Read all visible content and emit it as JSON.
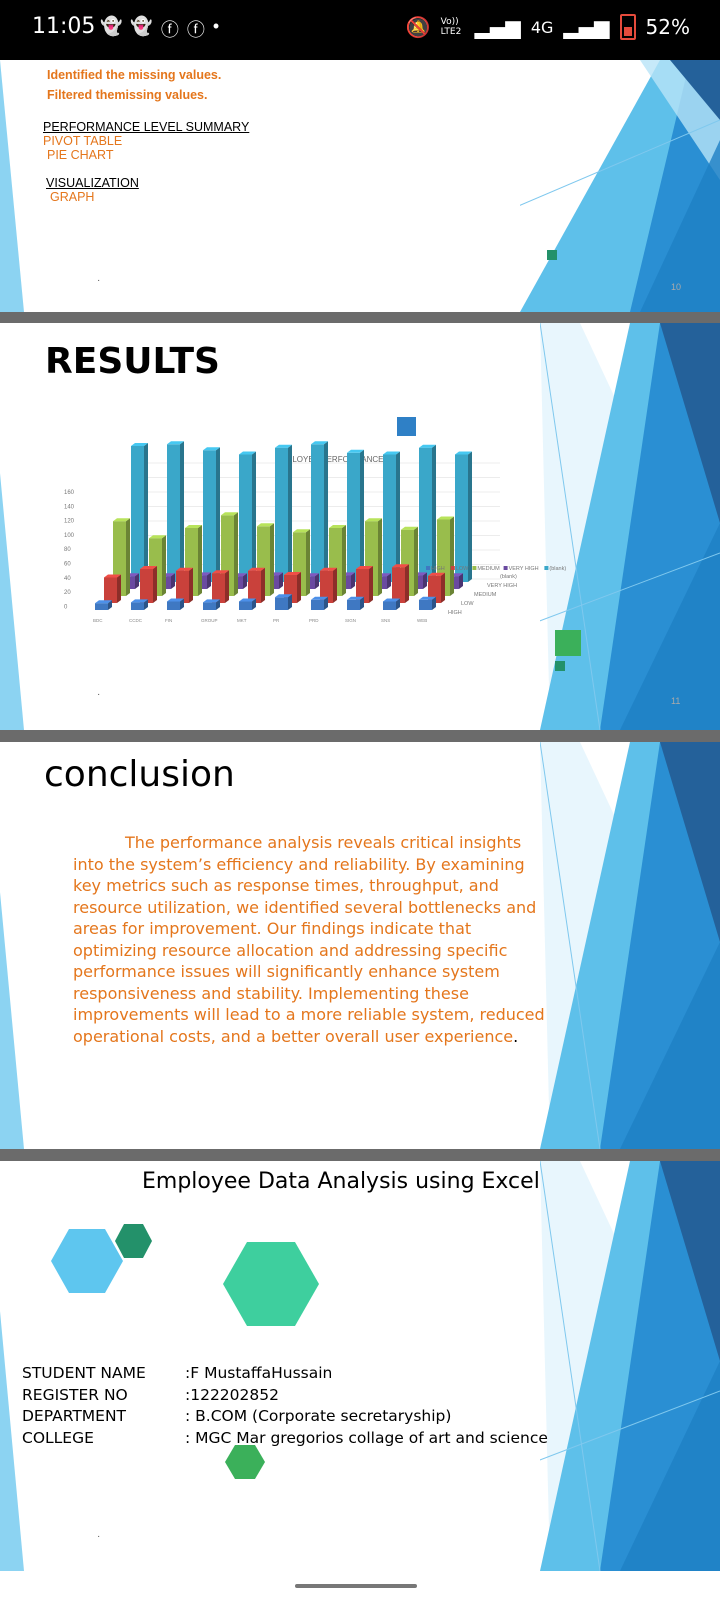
{
  "status": {
    "time": "11:05",
    "network": "4G",
    "battery": "52%",
    "volte": "Vo)) LTE2"
  },
  "slide1": {
    "line1": "Identified the missing values.",
    "line2": "Filtered themissing values.",
    "heading1": "PERFORMANCE LEVEL SUMMARY",
    "item1": "PIVOT TABLE",
    "item2": "PIE CHART",
    "heading2": "VISUALIZATION",
    "item3": "GRAPH",
    "page": "10"
  },
  "slide2": {
    "title": "RESULTS",
    "page": "11"
  },
  "chart_data": {
    "type": "bar",
    "title": "EMPLOYEE PERFORMANCE",
    "categories": [
      "BDC",
      "CCDC",
      "FIN",
      "GROUP",
      "MKT",
      "PR",
      "PRD",
      "SIGN",
      "SNS",
      "WEB"
    ],
    "series": [
      {
        "name": "HIGH",
        "values": [
          8,
          9,
          10,
          9,
          10,
          15,
          12,
          12,
          10,
          12
        ],
        "color": "#3f78c2"
      },
      {
        "name": "LOW",
        "values": [
          30,
          40,
          38,
          35,
          38,
          33,
          38,
          40,
          42,
          32
        ],
        "color": "#c9413b"
      },
      {
        "name": "MEDIUM",
        "values": [
          88,
          68,
          80,
          95,
          82,
          75,
          80,
          88,
          78,
          90
        ],
        "color": "#99bd4c"
      },
      {
        "name": "VERY HIGH",
        "values": [
          15,
          15,
          16,
          15,
          16,
          15,
          16,
          15,
          16,
          15
        ],
        "color": "#6a4aa0"
      },
      {
        "name": "(blank)",
        "values": [
          160,
          162,
          155,
          150,
          158,
          162,
          152,
          150,
          158,
          150
        ],
        "color": "#3aa7c9"
      }
    ],
    "yticks": [
      "160",
      "140",
      "120",
      "100",
      "80",
      "60",
      "40",
      "20",
      "0"
    ],
    "depth_labels": [
      "(blank)",
      "VERY HIGH",
      "MEDIUM",
      "LOW",
      "HIGH"
    ],
    "ylim": [
      0,
      160
    ],
    "legend": "right"
  },
  "slide3": {
    "title": "conclusion",
    "body": "The performance analysis reveals critical insights into the system’s efficiency and reliability. By examining key metrics such as response times, throughput, and resource utilization, we identified several bottlenecks and areas for improvement. Our findings indicate that optimizing resource allocation and addressing specific performance issues will significantly enhance system responsiveness and stability. Implementing these improvements will lead to a more reliable system, reduced operational costs, and a better overall user experience",
    "end": "."
  },
  "slide4": {
    "title": "Employee Data Analysis using Excel",
    "rows": [
      {
        "label": "STUDENT NAME",
        "value": ":F MustaffaHussain"
      },
      {
        "label": "REGISTER NO",
        "value": ":122202852"
      },
      {
        "label": "DEPARTMENT",
        "value": ": B.COM (Corporate secretaryship)"
      },
      {
        "label": "COLLEGE",
        "value": ": MGC Mar gregorios collage of art and science"
      }
    ]
  }
}
